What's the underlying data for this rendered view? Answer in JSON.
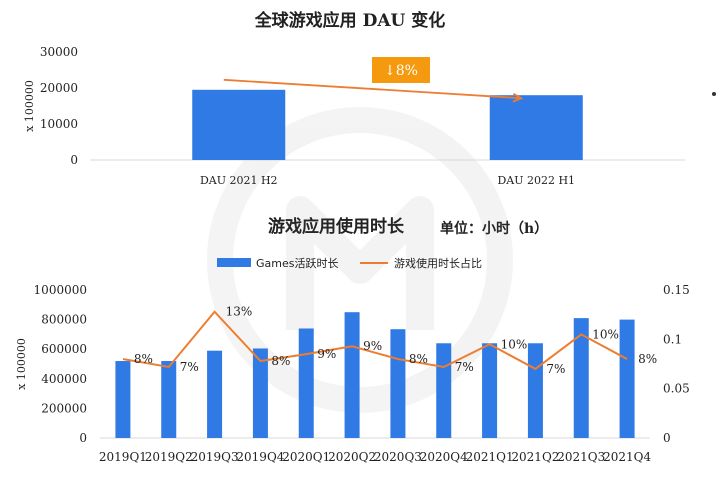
{
  "titles": {
    "top": "全球游戏应用 DAU 变化",
    "bottom": "游戏应用使用时长",
    "unit": "单位：小时（h）"
  },
  "colors": {
    "bar": "#2f7ae5",
    "line": "#ed7d31",
    "badge": "#f59a0e",
    "grid": "#d9d9d9"
  },
  "chart_data": [
    {
      "type": "bar",
      "title": "全球游戏应用 DAU 变化",
      "ylabel": "x 100000",
      "ylim": [
        0,
        30000
      ],
      "yticks": [
        0,
        10000,
        20000,
        30000
      ],
      "categories": [
        "DAU 2021 H2",
        "DAU 2022 H1"
      ],
      "values": [
        19500,
        18000
      ],
      "annotation": "↓8%"
    },
    {
      "type": "bar",
      "title": "游戏应用使用时长",
      "ylabel": "x 100000",
      "ylim": [
        0,
        1000000
      ],
      "yticks": [
        0,
        200000,
        400000,
        600000,
        800000,
        1000000
      ],
      "y2lim": [
        0,
        0.15
      ],
      "y2ticks": [
        0,
        0.05,
        0.1,
        0.15
      ],
      "categories": [
        "2019Q1",
        "2019Q2",
        "2019Q3",
        "2019Q4",
        "2020Q1",
        "2020Q2",
        "2020Q3",
        "2020Q4",
        "2021Q1",
        "2021Q2",
        "2021Q3",
        "2021Q4"
      ],
      "series": [
        {
          "name": "Games活跃时长",
          "type": "bar",
          "values": [
            520000,
            520000,
            590000,
            605000,
            740000,
            850000,
            735000,
            640000,
            640000,
            640000,
            810000,
            800000
          ]
        },
        {
          "name": "游戏使用时长占比",
          "type": "line",
          "axis": "right",
          "values": [
            0.08,
            0.072,
            0.128,
            0.078,
            0.085,
            0.093,
            0.08,
            0.072,
            0.095,
            0.07,
            0.105,
            0.08
          ],
          "labels": [
            "8%",
            "7%",
            "13%",
            "8%",
            "9%",
            "9%",
            "8%",
            "7%",
            "10%",
            "7%",
            "10%",
            "8%"
          ]
        }
      ]
    }
  ]
}
